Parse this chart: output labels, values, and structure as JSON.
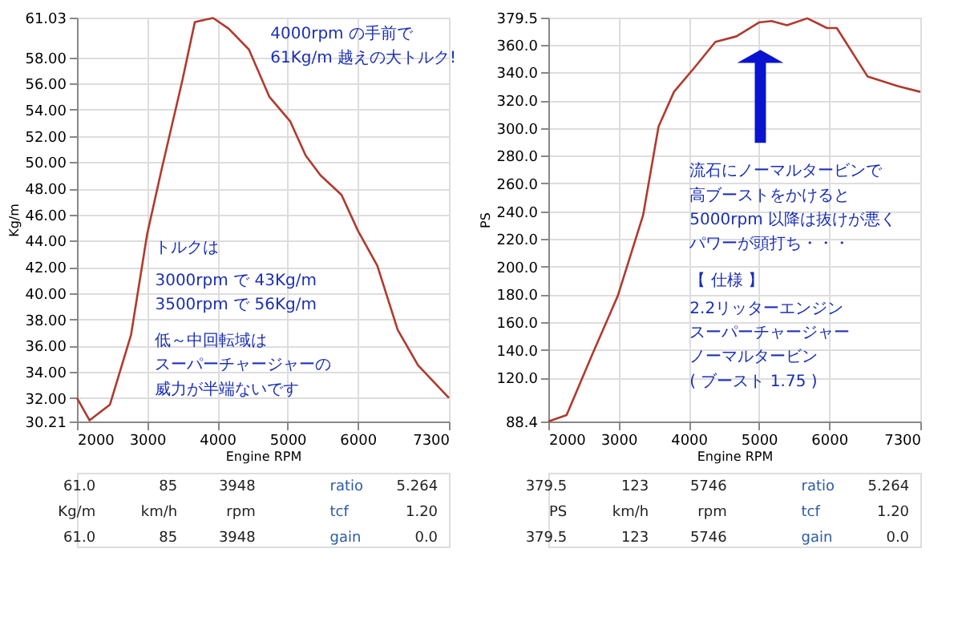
{
  "chart_data": [
    {
      "type": "line",
      "xlabel": "Engine RPM",
      "ylabel": "Kg/m",
      "x": [
        2000,
        2180,
        2470,
        2770,
        3000,
        3200,
        3500,
        3680,
        3940,
        4160,
        4450,
        4740,
        5040,
        5260,
        5470,
        5770,
        6000,
        6280,
        6570,
        6860,
        7300
      ],
      "series": [
        {
          "color": "#b03a2e",
          "values": [
            32.0,
            30.3,
            31.5,
            36.8,
            44.5,
            49.3,
            56.2,
            60.7,
            61.0,
            60.2,
            58.6,
            55.0,
            53.1,
            50.5,
            49.0,
            47.5,
            44.8,
            42.1,
            37.2,
            34.5,
            32.0
          ]
        }
      ],
      "xlim": [
        2000,
        7300
      ],
      "xticks": [
        2000,
        3000,
        4000,
        5000,
        6000,
        7300
      ],
      "ylim": [
        30.21,
        61.03
      ],
      "yticks": [
        30.21,
        {
          "value": 32,
          "label": "32.00"
        },
        {
          "value": 34,
          "label": "34.00"
        },
        {
          "value": 36,
          "label": "36.00"
        },
        {
          "value": 38,
          "label": "38.00"
        },
        {
          "value": 40,
          "label": "40.00"
        },
        {
          "value": 42,
          "label": "42.00"
        },
        {
          "value": 44,
          "label": "44.00"
        },
        {
          "value": 46,
          "label": "46.00"
        },
        {
          "value": 48,
          "label": "48.00"
        },
        {
          "value": 50,
          "label": "50.00"
        },
        {
          "value": 52,
          "label": "52.00"
        },
        {
          "value": 54,
          "label": "54.00"
        },
        {
          "value": 56,
          "label": "56.00"
        },
        {
          "value": 58,
          "label": "58.00"
        },
        61.03
      ],
      "grid": true,
      "line_style": "solid",
      "annotations": [
        "4000rpm の手前で",
        "61Kg/m 越えの大トルク!",
        "トルクは",
        "3000rpm で 43Kg/m",
        "3500rpm で 56Kg/m",
        "低～中回転域は",
        "スーパーチャージャーの",
        "威力が半端ないです",
        "61.0",
        "85",
        "3948",
        "ratio",
        "5.264",
        "Kg/m",
        "km/h",
        "rpm",
        "tcf",
        "1.20",
        "61.0",
        "85",
        "3948",
        "gain",
        "0.0"
      ]
    },
    {
      "type": "line",
      "xlabel": "Engine RPM",
      "ylabel": "PS",
      "x": [
        2000,
        2260,
        2620,
        2990,
        3350,
        3570,
        3790,
        4090,
        4380,
        4680,
        5000,
        5180,
        5400,
        5690,
        5970,
        6110,
        6550,
        6990,
        7300
      ],
      "series": [
        {
          "color": "#b03a2e",
          "values": [
            88.4,
            93,
            136,
            179,
            237,
            301,
            326,
            344,
            362,
            366,
            376,
            377,
            374,
            379,
            372,
            372,
            337,
            330,
            326
          ]
        }
      ],
      "xlim": [
        2000,
        7300
      ],
      "xticks": [
        2000,
        3000,
        4000,
        5000,
        6000,
        7300
      ],
      "ylim": [
        88.4,
        379.5
      ],
      "yticks": [
        88.4,
        {
          "value": 120,
          "label": "120.0"
        },
        {
          "value": 140,
          "label": "140.0"
        },
        {
          "value": 160,
          "label": "160.0"
        },
        {
          "value": 180,
          "label": "180.0"
        },
        {
          "value": 200,
          "label": "200.0"
        },
        {
          "value": 220,
          "label": "220.0"
        },
        {
          "value": 240,
          "label": "240.0"
        },
        {
          "value": 260,
          "label": "260.0"
        },
        {
          "value": 280,
          "label": "280.0"
        },
        {
          "value": 300,
          "label": "300.0"
        },
        {
          "value": 320,
          "label": "320.0"
        },
        {
          "value": 340,
          "label": "340.0"
        },
        {
          "value": 360,
          "label": "360.0"
        },
        379.5
      ],
      "grid": true,
      "line_style": "solid",
      "annotations": [
        "流石にノーマルタービンで",
        "高ブーストをかけると",
        "5000rpm 以降は抜けが悪く",
        "パワーが頭打ち・・・",
        "【 仕様 】",
        "2.2リッターエンジン",
        "スーパーチャージャー",
        "ノーマルタービン",
        "( ブースト 1.75 )",
        "379.5",
        "123",
        "5746",
        "ratio",
        "5.264",
        "PS",
        "km/h",
        "rpm",
        "tcf",
        "1.20",
        "379.5",
        "123",
        "5746",
        "gain",
        "0.0"
      ]
    }
  ]
}
